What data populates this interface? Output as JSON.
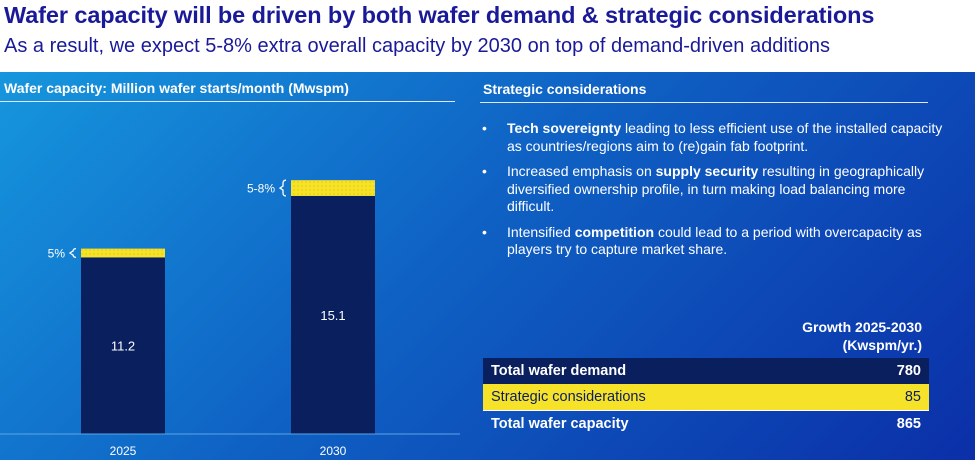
{
  "header": {
    "title": "Wafer capacity will be driven by both wafer demand & strategic considerations",
    "subtitle": "As a result, we expect 5-8% extra overall capacity by 2030 on top of demand-driven additions"
  },
  "left": {
    "heading": "Wafer capacity: Million wafer starts/month (Mwspm)"
  },
  "chart_data": {
    "type": "bar",
    "stacked": true,
    "categories": [
      "2025",
      "2030"
    ],
    "series": [
      {
        "values": [
          11.2,
          15.1
        ],
        "labels": [
          "11.2",
          "15.1"
        ],
        "color": "#0a1f5e"
      },
      {
        "values": [
          0.56,
          1.0
        ],
        "labels": [
          "5%",
          "5-8%"
        ],
        "color": "#f7e22a"
      }
    ],
    "ylim": [
      0,
      17
    ],
    "grid": false
  },
  "right": {
    "heading": "Strategic considerations",
    "bullets": [
      {
        "bold": "Tech sovereignty",
        "pre": "",
        "post": " leading to less efficient use of the installed capacity as countries/regions aim to (re)gain fab footprint."
      },
      {
        "bold": "supply security",
        "pre": "Increased emphasis on ",
        "post": " resulting in geographically diversified ownership profile, in turn making load balancing more difficult."
      },
      {
        "bold": "competition",
        "pre": "Intensified ",
        "post": " could lead to a period with overcapacity as players try to capture market share."
      }
    ],
    "bullet_char": "•"
  },
  "growth": {
    "heading_line1": "Growth 2025-2030",
    "heading_line2": "(Kwspm/yr.)",
    "rows": [
      {
        "label": "Total wafer demand",
        "value": "780"
      },
      {
        "label": "Strategic considerations",
        "value": "85"
      },
      {
        "label": "Total wafer capacity",
        "value": "865"
      }
    ]
  },
  "colors": {
    "title": "#1a1a99",
    "bar_dark": "#0a1f5e",
    "bar_yellow": "#f7e22a",
    "panel_start": "#1696dd",
    "panel_end": "#0b2fa8"
  }
}
